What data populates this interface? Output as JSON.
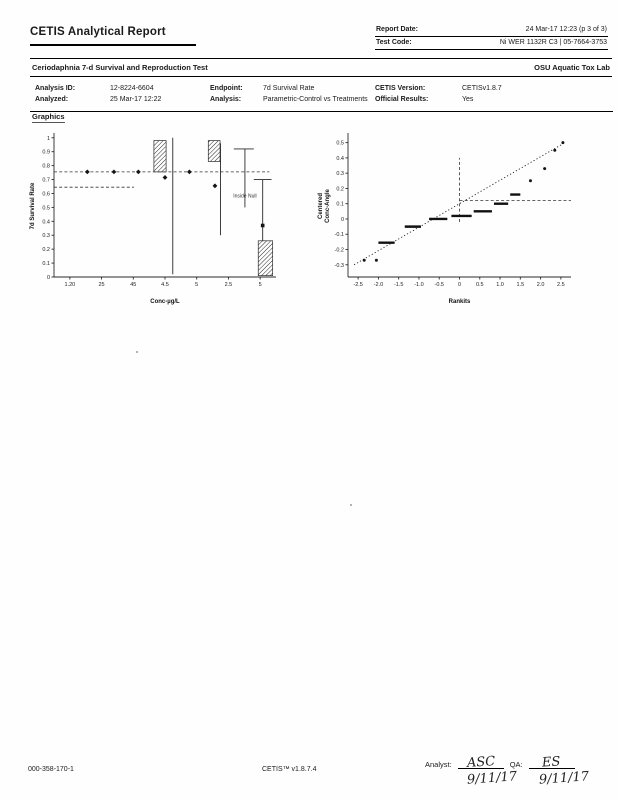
{
  "header": {
    "title": "CETIS Analytical Report",
    "report_date_label": "Report Date:",
    "report_date_value": "24 Mar-17 12:23 (p 3 of 3)",
    "test_code_label": "Test Code:",
    "test_code_value": "Ni WER 1132R C3 | 05-7664-3753"
  },
  "test_band": {
    "test_name": "Ceriodaphnia 7-d Survival and Reproduction Test",
    "lab_name": "OSU Aquatic Tox Lab"
  },
  "analysis_info": {
    "rows": [
      {
        "label1": "Analysis ID:",
        "value1": "12-8224-6604",
        "label2": "Endpoint:",
        "value2": "7d Survival Rate",
        "label3": "CETIS Version:",
        "value3": "CETISv1.8.7"
      },
      {
        "label1": "Analyzed:",
        "value1": "25 Mar-17 12:22",
        "label2": "Analysis:",
        "value2": "Parametric-Control vs Treatments",
        "label3": "Official Results:",
        "value3": "Yes"
      }
    ]
  },
  "graphics": {
    "section_label": "Graphics"
  },
  "footer": {
    "doc_code": "000-358-170-1",
    "app_version": "CETIS™ v1.8.7.4",
    "analyst_label": "Analyst:",
    "analyst_initials": "ASC",
    "analyst_date": "9/11/17",
    "qa_label": "QA:",
    "qa_initials": "ES",
    "qa_date": "9/11/17"
  },
  "chart_data": [
    {
      "type": "scatter",
      "title": "",
      "xlabel": "Conc-µg/L",
      "ylabel": "7d Survival Rate",
      "xlim": [
        0,
        1
      ],
      "ylim": [
        0,
        1.02
      ],
      "yticks": [
        0,
        0.1,
        0.2,
        0.3,
        0.4,
        0.5,
        0.6,
        0.7,
        0.8,
        0.9,
        1
      ],
      "ytick_labels": [
        "0",
        "0.1",
        "0.2",
        "0.3",
        "0.4",
        "0.5",
        "0.6",
        "0.7",
        "0.8",
        "0.9",
        "1"
      ],
      "xticklabels": [
        "1.20",
        "25",
        "45",
        "4.5",
        "5",
        "2.5",
        "5"
      ],
      "hlines": [
        {
          "y": 0.755,
          "x1": 0,
          "x2": 0.97,
          "dash": true
        },
        {
          "y": 0.645,
          "x1": 0,
          "x2": 0.36,
          "dash": true
        }
      ],
      "vlines": [
        {
          "x": 0.535,
          "y1": 0.02,
          "y2": 1.0
        },
        {
          "x": 0.75,
          "y1": 0.3,
          "y2": 0.96
        },
        {
          "x": 0.86,
          "y1": 0.5,
          "y2": 0.92
        },
        {
          "x": 0.94,
          "y1": 0.26,
          "y2": 0.7
        }
      ],
      "caps": [
        {
          "y": 0.92,
          "x1": 0.81,
          "x2": 0.9
        },
        {
          "y": 0.7,
          "x1": 0.9,
          "x2": 0.98
        }
      ],
      "hatch_boxes": [
        {
          "x1": 0.45,
          "x2": 0.505,
          "y1": 0.755,
          "y2": 0.98
        },
        {
          "x1": 0.695,
          "x2": 0.748,
          "y1": 0.83,
          "y2": 0.98
        },
        {
          "x1": 0.92,
          "x2": 0.985,
          "y1": 0.01,
          "y2": 0.26
        }
      ],
      "diamonds": [
        [
          0.15,
          0.755
        ],
        [
          0.27,
          0.755
        ],
        [
          0.38,
          0.755
        ],
        [
          0.5,
          0.715
        ],
        [
          0.61,
          0.755
        ],
        [
          0.725,
          0.655
        ]
      ],
      "squares": [
        [
          0.94,
          0.37
        ]
      ],
      "annotations": [
        {
          "x": 0.86,
          "y": 0.57,
          "text": "Inside Null"
        }
      ]
    },
    {
      "type": "scatter",
      "title": "",
      "xlabel": "Rankits",
      "ylabel": "Centered\nConc-Angle",
      "xlim": [
        -2.75,
        2.75
      ],
      "ylim": [
        -0.38,
        0.55
      ],
      "yticks": [
        0.5,
        0.4,
        0.3,
        0.2,
        0.1,
        0,
        -0.1,
        -0.2,
        -0.3
      ],
      "ytick_labels": [
        "0.5",
        "0.4",
        "0.3",
        "0.2",
        "0.1",
        "0",
        "-0.1",
        "-0.2",
        "-0.3"
      ],
      "xticks": [
        -2.5,
        -2,
        -1.5,
        -1,
        -0.5,
        0,
        0.5,
        1,
        1.5,
        2,
        2.5
      ],
      "xtick_labels": [
        "-2.5",
        "-2.0",
        "-1.5",
        "-1.0",
        "-0.5",
        "0",
        "0.5",
        "1.0",
        "1.5",
        "2.0",
        "2.5"
      ],
      "trend": {
        "x1": -2.6,
        "y1": -0.3,
        "x2": 2.6,
        "y2": 0.5
      },
      "hlines": [
        {
          "y": 0.12,
          "x1": 0,
          "x2": 2.75,
          "dash": true
        }
      ],
      "vlines": [
        {
          "x": 0,
          "y1": -0.02,
          "y2": 0.4,
          "dash": true
        }
      ],
      "segments": [
        {
          "x1": -2.0,
          "x2": -1.6,
          "y": -0.155
        },
        {
          "x1": -1.35,
          "x2": -0.95,
          "y": -0.05
        },
        {
          "x1": -0.75,
          "x2": -0.3,
          "y": 0.0
        },
        {
          "x1": -0.2,
          "x2": 0.3,
          "y": 0.02
        },
        {
          "x1": 0.35,
          "x2": 0.8,
          "y": 0.05
        },
        {
          "x1": 0.85,
          "x2": 1.2,
          "y": 0.1
        },
        {
          "x1": 1.25,
          "x2": 1.5,
          "y": 0.16
        }
      ],
      "dots": [
        [
          -2.35,
          -0.27
        ],
        [
          -2.05,
          -0.27
        ],
        [
          1.75,
          0.25
        ],
        [
          2.1,
          0.33
        ],
        [
          2.35,
          0.45
        ],
        [
          2.55,
          0.5
        ]
      ]
    }
  ]
}
